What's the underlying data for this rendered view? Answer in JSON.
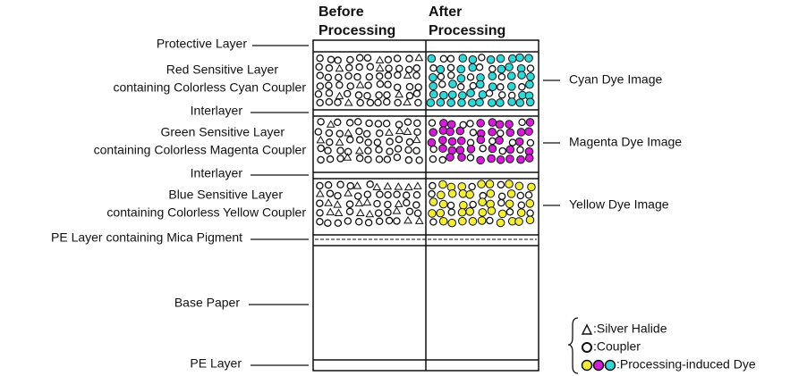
{
  "columns": [
    [
      "Before",
      "Processing"
    ],
    [
      "After",
      "Processing"
    ]
  ],
  "layer_labels": [
    [
      "Protective Layer"
    ],
    [
      "Red Sensitive Layer",
      "containing Colorless Cyan Coupler"
    ],
    [
      "Interlayer"
    ],
    [
      "Green Sensitive Layer",
      "containing Colorless Magenta Coupler"
    ],
    [
      "Interlayer"
    ],
    [
      "Blue Sensitive Layer",
      "containing Colorless Yellow Coupler"
    ],
    [
      "PE Layer containing Mica Pigment"
    ],
    [
      "Base Paper"
    ],
    [
      "PE Layer"
    ]
  ],
  "dye_labels": [
    "Cyan Dye Image",
    "Magenta Dye Image",
    "Yellow Dye Image"
  ],
  "legend": [
    ":Silver Halide",
    ":Coupler",
    ":Processing-induced Dye"
  ]
}
